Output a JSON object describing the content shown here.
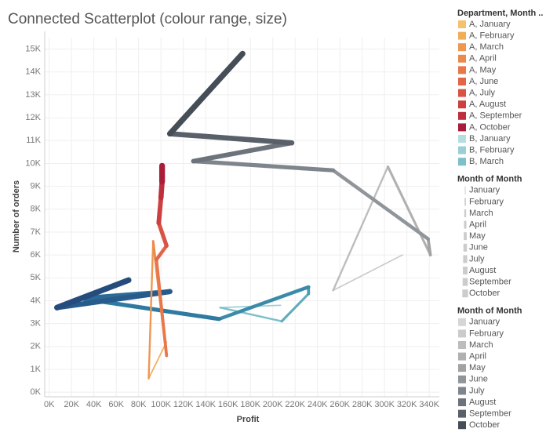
{
  "chart_data": {
    "type": "connected-scatter",
    "title": "Connected Scatterplot (colour range, size)",
    "x_label": "Profit",
    "y_label": "Number of orders",
    "xlim": [
      -4000,
      349000
    ],
    "ylim": [
      -200,
      15500
    ],
    "xticks": [
      {
        "value": 0,
        "label": "0K"
      },
      {
        "value": 20000,
        "label": "20K"
      },
      {
        "value": 40000,
        "label": "40K"
      },
      {
        "value": 60000,
        "label": "60K"
      },
      {
        "value": 80000,
        "label": "80K"
      },
      {
        "value": 100000,
        "label": "100K"
      },
      {
        "value": 120000,
        "label": "120K"
      },
      {
        "value": 140000,
        "label": "140K"
      },
      {
        "value": 160000,
        "label": "160K"
      },
      {
        "value": 180000,
        "label": "180K"
      },
      {
        "value": 200000,
        "label": "200K"
      },
      {
        "value": 220000,
        "label": "220K"
      },
      {
        "value": 240000,
        "label": "240K"
      },
      {
        "value": 260000,
        "label": "260K"
      },
      {
        "value": 280000,
        "label": "280K"
      },
      {
        "value": 300000,
        "label": "300K"
      },
      {
        "value": 320000,
        "label": "320K"
      },
      {
        "value": 340000,
        "label": "340K"
      }
    ],
    "yticks": [
      {
        "value": 0,
        "label": "0K"
      },
      {
        "value": 1000,
        "label": "1K"
      },
      {
        "value": 2000,
        "label": "2K"
      },
      {
        "value": 3000,
        "label": "3K"
      },
      {
        "value": 4000,
        "label": "4K"
      },
      {
        "value": 5000,
        "label": "5K"
      },
      {
        "value": 6000,
        "label": "6K"
      },
      {
        "value": 7000,
        "label": "7K"
      },
      {
        "value": 8000,
        "label": "8K"
      },
      {
        "value": 9000,
        "label": "9K"
      },
      {
        "value": 10000,
        "label": "10K"
      },
      {
        "value": 11000,
        "label": "11K"
      },
      {
        "value": 12000,
        "label": "12K"
      },
      {
        "value": 13000,
        "label": "13K"
      },
      {
        "value": 14000,
        "label": "14K"
      },
      {
        "value": 15000,
        "label": "15K"
      }
    ],
    "grid": true,
    "series": [
      {
        "x": [
          316000,
          254000,
          303000,
          341000,
          339000,
          254000,
          129000,
          217000,
          108000,
          173000
        ],
        "values": [
          6000,
          4450,
          9860,
          6000,
          6700,
          9700,
          10100,
          10900,
          11300,
          14800
        ],
        "colors": [
          "#d6d6d6",
          "#cbcbcb",
          "#bdbdbd",
          "#b0b0b0",
          "#a2a2a2",
          "#90959a",
          "#7f858c",
          "#6c737b",
          "#59606a",
          "#454d57"
        ]
      },
      {
        "x": [
          207000,
          153000,
          208000,
          232000,
          232000,
          152000,
          28000,
          108000,
          7000,
          71000
        ],
        "values": [
          3800,
          3700,
          3100,
          4300,
          4600,
          3200,
          4100,
          4400,
          3700,
          4900
        ],
        "colors": [
          "#b6dde0",
          "#9bcfd5",
          "#7dbfca",
          "#5fadbd",
          "#4a9bb3",
          "#3a8aa8",
          "#2f7aa0",
          "#2b6a96",
          "#275b8b",
          "#264c7e"
        ]
      },
      {
        "x": [
          105000,
          89000,
          93000,
          105000,
          96000,
          105000,
          98000,
          100000,
          101000,
          101000
        ],
        "values": [
          2200,
          600,
          6600,
          1600,
          5800,
          6400,
          7400,
          8500,
          9200,
          9900
        ],
        "colors": [
          "#f5c26b",
          "#f2ad5a",
          "#ef9651",
          "#ec8a4e",
          "#e8774a",
          "#e16547",
          "#d85344",
          "#cc4040",
          "#be2f3e",
          "#a81d38"
        ]
      }
    ],
    "legends": [
      {
        "title": "Department, Month ..",
        "items": [
          {
            "label": "A, January",
            "color": "#f5c26b"
          },
          {
            "label": "A, February",
            "color": "#f2ad5a"
          },
          {
            "label": "A, March",
            "color": "#ef9651"
          },
          {
            "label": "A, April",
            "color": "#ec8a4e"
          },
          {
            "label": "A, May",
            "color": "#e8774a"
          },
          {
            "label": "A, June",
            "color": "#e16547"
          },
          {
            "label": "A, July",
            "color": "#d85344"
          },
          {
            "label": "A, August",
            "color": "#cc4040"
          },
          {
            "label": "A, September",
            "color": "#be2f3e"
          },
          {
            "label": "A, October",
            "color": "#a81d38"
          },
          {
            "label": "B, January",
            "color": "#b6dde0"
          },
          {
            "label": "B, February",
            "color": "#9bcfd5"
          },
          {
            "label": "B, March",
            "color": "#7dbfca"
          }
        ]
      },
      {
        "title": "Month of Month",
        "items": [
          {
            "label": "January"
          },
          {
            "label": "February"
          },
          {
            "label": "March"
          },
          {
            "label": "April"
          },
          {
            "label": "May"
          },
          {
            "label": "June"
          },
          {
            "label": "July"
          },
          {
            "label": "August"
          },
          {
            "label": "September"
          },
          {
            "label": "October"
          }
        ]
      },
      {
        "title": "Month of Month",
        "items": [
          {
            "label": "January",
            "color": "#d6d6d6"
          },
          {
            "label": "February",
            "color": "#cbcbcb"
          },
          {
            "label": "March",
            "color": "#bdbdbd"
          },
          {
            "label": "April",
            "color": "#b0b0b0"
          },
          {
            "label": "May",
            "color": "#a2a2a2"
          },
          {
            "label": "June",
            "color": "#90959a"
          },
          {
            "label": "July",
            "color": "#7f858c"
          },
          {
            "label": "August",
            "color": "#6c737b"
          },
          {
            "label": "September",
            "color": "#59606a"
          },
          {
            "label": "October",
            "color": "#454d57"
          }
        ]
      }
    ]
  }
}
